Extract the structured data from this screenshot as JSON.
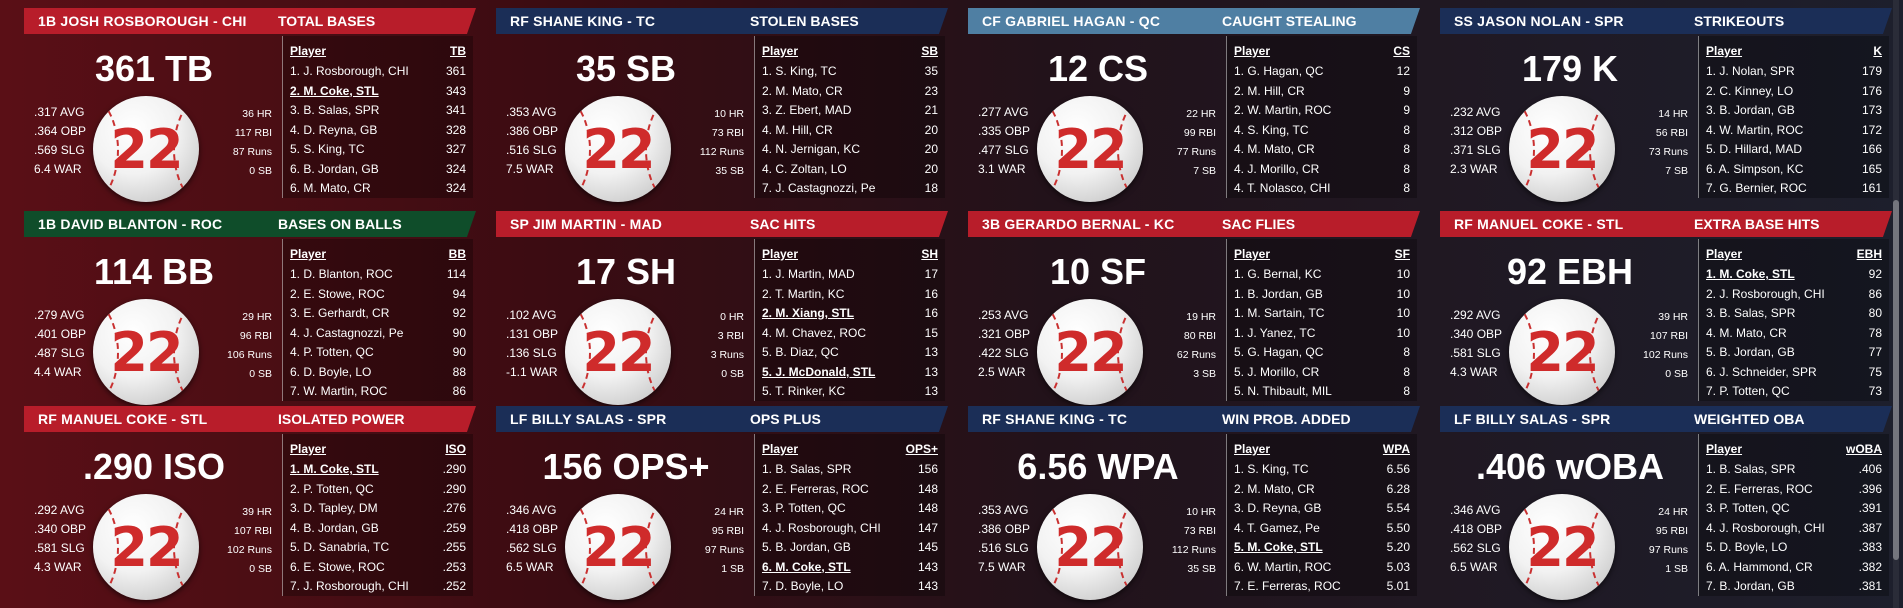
{
  "colors": {
    "red": "#b81d2a",
    "navy": "#1b2e57",
    "green": "#0f4d2a",
    "steel": "#4f7fa3",
    "ball_number": "#cf2b2b"
  },
  "ball_number": "22",
  "cards": [
    {
      "banner_color": "#b81d2a",
      "player": "1B JOSH ROSBOROUGH - CHI",
      "stat": "TOTAL BASES",
      "big": "361 TB",
      "avg": ".317 AVG",
      "obp": ".364 OBP",
      "slg": ".569 SLG",
      "war": "6.4 WAR",
      "hr": "36 HR",
      "rbi": "117 RBI",
      "runs": "87 Runs",
      "sb": "0 SB",
      "col": "TB",
      "rows": [
        {
          "name": "1. J. Rosborough, CHI",
          "value": "361",
          "hl": false
        },
        {
          "name": "2. M. Coke, STL",
          "value": "343",
          "hl": true
        },
        {
          "name": "3. B. Salas, SPR",
          "value": "341",
          "hl": false
        },
        {
          "name": "4. D. Reyna, GB",
          "value": "328",
          "hl": false
        },
        {
          "name": "5. S. King, TC",
          "value": "327",
          "hl": false
        },
        {
          "name": "6. B. Jordan, GB",
          "value": "324",
          "hl": false
        },
        {
          "name": "6. M. Mato, CR",
          "value": "324",
          "hl": false
        }
      ]
    },
    {
      "banner_color": "#1b2e57",
      "player": "RF SHANE KING - TC",
      "stat": "STOLEN BASES",
      "big": "35 SB",
      "avg": ".353 AVG",
      "obp": ".386 OBP",
      "slg": ".516 SLG",
      "war": "7.5 WAR",
      "hr": "10 HR",
      "rbi": "73 RBI",
      "runs": "112 Runs",
      "sb": "35 SB",
      "col": "SB",
      "rows": [
        {
          "name": "1. S. King, TC",
          "value": "35",
          "hl": false
        },
        {
          "name": "2. M. Mato, CR",
          "value": "23",
          "hl": false
        },
        {
          "name": "3. Z. Ebert, MAD",
          "value": "21",
          "hl": false
        },
        {
          "name": "4. M. Hill, CR",
          "value": "20",
          "hl": false
        },
        {
          "name": "4. N. Jernigan, KC",
          "value": "20",
          "hl": false
        },
        {
          "name": "4. C. Zoltan, LO",
          "value": "20",
          "hl": false
        },
        {
          "name": "7. J. Castagnozzi, Pe",
          "value": "18",
          "hl": false
        }
      ]
    },
    {
      "banner_color": "#4f7fa3",
      "player": "CF GABRIEL HAGAN - QC",
      "stat": "CAUGHT STEALING",
      "big": "12 CS",
      "avg": ".277 AVG",
      "obp": ".335 OBP",
      "slg": ".477 SLG",
      "war": "3.1 WAR",
      "hr": "22 HR",
      "rbi": "99 RBI",
      "runs": "77 Runs",
      "sb": "7 SB",
      "col": "CS",
      "rows": [
        {
          "name": "1. G. Hagan, QC",
          "value": "12",
          "hl": false
        },
        {
          "name": "2. M. Hill, CR",
          "value": "9",
          "hl": false
        },
        {
          "name": "2. W. Martin, ROC",
          "value": "9",
          "hl": false
        },
        {
          "name": "4. S. King, TC",
          "value": "8",
          "hl": false
        },
        {
          "name": "4. M. Mato, CR",
          "value": "8",
          "hl": false
        },
        {
          "name": "4. J. Morillo, CR",
          "value": "8",
          "hl": false
        },
        {
          "name": "4. T. Nolasco, CHI",
          "value": "8",
          "hl": false
        }
      ]
    },
    {
      "banner_color": "#1b2e57",
      "player": "SS JASON NOLAN - SPR",
      "stat": "STRIKEOUTS",
      "big": "179 K",
      "avg": ".232 AVG",
      "obp": ".312 OBP",
      "slg": ".371 SLG",
      "war": "2.3 WAR",
      "hr": "14 HR",
      "rbi": "56 RBI",
      "runs": "73 Runs",
      "sb": "7 SB",
      "col": "K",
      "rows": [
        {
          "name": "1. J. Nolan, SPR",
          "value": "179",
          "hl": false
        },
        {
          "name": "2. C. Kinney, LO",
          "value": "176",
          "hl": false
        },
        {
          "name": "3. B. Jordan, GB",
          "value": "173",
          "hl": false
        },
        {
          "name": "4. W. Martin, ROC",
          "value": "172",
          "hl": false
        },
        {
          "name": "5. D. Hillard, MAD",
          "value": "166",
          "hl": false
        },
        {
          "name": "6. A. Simpson, KC",
          "value": "165",
          "hl": false
        },
        {
          "name": "7. G. Bernier, ROC",
          "value": "161",
          "hl": false
        }
      ]
    },
    {
      "banner_color": "#0f4d2a",
      "player": "1B DAVID BLANTON - ROC",
      "stat": "BASES ON BALLS",
      "big": "114 BB",
      "avg": ".279 AVG",
      "obp": ".401 OBP",
      "slg": ".487 SLG",
      "war": "4.4 WAR",
      "hr": "29 HR",
      "rbi": "96 RBI",
      "runs": "106 Runs",
      "sb": "0 SB",
      "col": "BB",
      "rows": [
        {
          "name": "1. D. Blanton, ROC",
          "value": "114",
          "hl": false
        },
        {
          "name": "2. E. Stowe, ROC",
          "value": "94",
          "hl": false
        },
        {
          "name": "3. E. Gerhardt, CR",
          "value": "92",
          "hl": false
        },
        {
          "name": "4. J. Castagnozzi, Pe",
          "value": "90",
          "hl": false
        },
        {
          "name": "4. P. Totten, QC",
          "value": "90",
          "hl": false
        },
        {
          "name": "6. D. Boyle, LO",
          "value": "88",
          "hl": false
        },
        {
          "name": "7. W. Martin, ROC",
          "value": "86",
          "hl": false
        }
      ]
    },
    {
      "banner_color": "#b81d2a",
      "player": "SP JIM MARTIN - MAD",
      "stat": "SAC HITS",
      "big": "17 SH",
      "avg": ".102 AVG",
      "obp": ".131 OBP",
      "slg": ".136 SLG",
      "war": "-1.1 WAR",
      "hr": "0 HR",
      "rbi": "3 RBI",
      "runs": "3 Runs",
      "sb": "0 SB",
      "col": "SH",
      "rows": [
        {
          "name": "1. J. Martin, MAD",
          "value": "17",
          "hl": false
        },
        {
          "name": "2. T. Martin, KC",
          "value": "16",
          "hl": false
        },
        {
          "name": "2. M. Xiang, STL",
          "value": "16",
          "hl": true
        },
        {
          "name": "4. M. Chavez, ROC",
          "value": "15",
          "hl": false
        },
        {
          "name": "5. B. Diaz, QC",
          "value": "13",
          "hl": false
        },
        {
          "name": "5. J. McDonald, STL",
          "value": "13",
          "hl": true
        },
        {
          "name": "5. T. Rinker, KC",
          "value": "13",
          "hl": false
        }
      ]
    },
    {
      "banner_color": "#b81d2a",
      "player": "3B GERARDO BERNAL - KC",
      "stat": "SAC FLIES",
      "big": "10 SF",
      "avg": ".253 AVG",
      "obp": ".321 OBP",
      "slg": ".422 SLG",
      "war": "2.5 WAR",
      "hr": "19 HR",
      "rbi": "80 RBI",
      "runs": "62 Runs",
      "sb": "3 SB",
      "col": "SF",
      "rows": [
        {
          "name": "1. G. Bernal, KC",
          "value": "10",
          "hl": false
        },
        {
          "name": "1. B. Jordan, GB",
          "value": "10",
          "hl": false
        },
        {
          "name": "1. M. Sartain, TC",
          "value": "10",
          "hl": false
        },
        {
          "name": "1. J. Yanez, TC",
          "value": "10",
          "hl": false
        },
        {
          "name": "5. G. Hagan, QC",
          "value": "8",
          "hl": false
        },
        {
          "name": "5. J. Morillo, CR",
          "value": "8",
          "hl": false
        },
        {
          "name": "5. N. Thibault, MIL",
          "value": "8",
          "hl": false
        }
      ]
    },
    {
      "banner_color": "#b81d2a",
      "player": "RF MANUEL COKE - STL",
      "stat": "EXTRA BASE HITS",
      "big": "92 EBH",
      "avg": ".292 AVG",
      "obp": ".340 OBP",
      "slg": ".581 SLG",
      "war": "4.3 WAR",
      "hr": "39 HR",
      "rbi": "107 RBI",
      "runs": "102 Runs",
      "sb": "0 SB",
      "col": "EBH",
      "rows": [
        {
          "name": "1. M. Coke, STL",
          "value": "92",
          "hl": true
        },
        {
          "name": "2. J. Rosborough, CHI",
          "value": "86",
          "hl": false
        },
        {
          "name": "3. B. Salas, SPR",
          "value": "80",
          "hl": false
        },
        {
          "name": "4. M. Mato, CR",
          "value": "78",
          "hl": false
        },
        {
          "name": "5. B. Jordan, GB",
          "value": "77",
          "hl": false
        },
        {
          "name": "6. J. Schneider, SPR",
          "value": "75",
          "hl": false
        },
        {
          "name": "7. P. Totten, QC",
          "value": "73",
          "hl": false
        }
      ]
    },
    {
      "banner_color": "#b81d2a",
      "player": "RF MANUEL COKE - STL",
      "stat": "ISOLATED POWER",
      "big": ".290 ISO",
      "avg": ".292 AVG",
      "obp": ".340 OBP",
      "slg": ".581 SLG",
      "war": "4.3 WAR",
      "hr": "39 HR",
      "rbi": "107 RBI",
      "runs": "102 Runs",
      "sb": "0 SB",
      "col": "ISO",
      "rows": [
        {
          "name": "1. M. Coke, STL",
          "value": ".290",
          "hl": true
        },
        {
          "name": "2. P. Totten, QC",
          "value": ".290",
          "hl": false
        },
        {
          "name": "3. D. Tapley, DM",
          "value": ".276",
          "hl": false
        },
        {
          "name": "4. B. Jordan, GB",
          "value": ".259",
          "hl": false
        },
        {
          "name": "5. D. Sanabria, TC",
          "value": ".255",
          "hl": false
        },
        {
          "name": "6. E. Stowe, ROC",
          "value": ".253",
          "hl": false
        },
        {
          "name": "7. J. Rosborough, CHI",
          "value": ".252",
          "hl": false
        }
      ]
    },
    {
      "banner_color": "#1b2e57",
      "player": "LF BILLY SALAS - SPR",
      "stat": "OPS PLUS",
      "big": "156 OPS+",
      "avg": ".346 AVG",
      "obp": ".418 OBP",
      "slg": ".562 SLG",
      "war": "6.5 WAR",
      "hr": "24 HR",
      "rbi": "95 RBI",
      "runs": "97 Runs",
      "sb": "1 SB",
      "col": "OPS+",
      "rows": [
        {
          "name": "1. B. Salas, SPR",
          "value": "156",
          "hl": false
        },
        {
          "name": "2. E. Ferreras, ROC",
          "value": "148",
          "hl": false
        },
        {
          "name": "3. P. Totten, QC",
          "value": "148",
          "hl": false
        },
        {
          "name": "4. J. Rosborough, CHI",
          "value": "147",
          "hl": false
        },
        {
          "name": "5. B. Jordan, GB",
          "value": "145",
          "hl": false
        },
        {
          "name": "6. M. Coke, STL",
          "value": "143",
          "hl": true
        },
        {
          "name": "7. D. Boyle, LO",
          "value": "143",
          "hl": false
        }
      ]
    },
    {
      "banner_color": "#1b2e57",
      "player": "RF SHANE KING - TC",
      "stat": "WIN PROB. ADDED",
      "big": "6.56 WPA",
      "avg": ".353 AVG",
      "obp": ".386 OBP",
      "slg": ".516 SLG",
      "war": "7.5 WAR",
      "hr": "10 HR",
      "rbi": "73 RBI",
      "runs": "112 Runs",
      "sb": "35 SB",
      "col": "WPA",
      "rows": [
        {
          "name": "1. S. King, TC",
          "value": "6.56",
          "hl": false
        },
        {
          "name": "2. M. Mato, CR",
          "value": "6.28",
          "hl": false
        },
        {
          "name": "3. D. Reyna, GB",
          "value": "5.54",
          "hl": false
        },
        {
          "name": "4. T. Gamez, Pe",
          "value": "5.50",
          "hl": false
        },
        {
          "name": "5. M. Coke, STL",
          "value": "5.20",
          "hl": true
        },
        {
          "name": "6. W. Martin, ROC",
          "value": "5.03",
          "hl": false
        },
        {
          "name": "7. E. Ferreras, ROC",
          "value": "5.01",
          "hl": false
        }
      ]
    },
    {
      "banner_color": "#1b2e57",
      "player": "LF BILLY SALAS - SPR",
      "stat": "WEIGHTED OBA",
      "big": ".406 wOBA",
      "avg": ".346 AVG",
      "obp": ".418 OBP",
      "slg": ".562 SLG",
      "war": "6.5 WAR",
      "hr": "24 HR",
      "rbi": "95 RBI",
      "runs": "97 Runs",
      "sb": "1 SB",
      "col": "wOBA",
      "rows": [
        {
          "name": "1. B. Salas, SPR",
          "value": ".406",
          "hl": false
        },
        {
          "name": "2. E. Ferreras, ROC",
          "value": ".396",
          "hl": false
        },
        {
          "name": "3. P. Totten, QC",
          "value": ".391",
          "hl": false
        },
        {
          "name": "4. J. Rosborough, CHI",
          "value": ".387",
          "hl": false
        },
        {
          "name": "5. D. Boyle, LO",
          "value": ".383",
          "hl": false
        },
        {
          "name": "6. A. Hammond, CR",
          "value": ".382",
          "hl": false
        },
        {
          "name": "7. B. Jordan, GB",
          "value": ".381",
          "hl": false
        }
      ]
    }
  ]
}
